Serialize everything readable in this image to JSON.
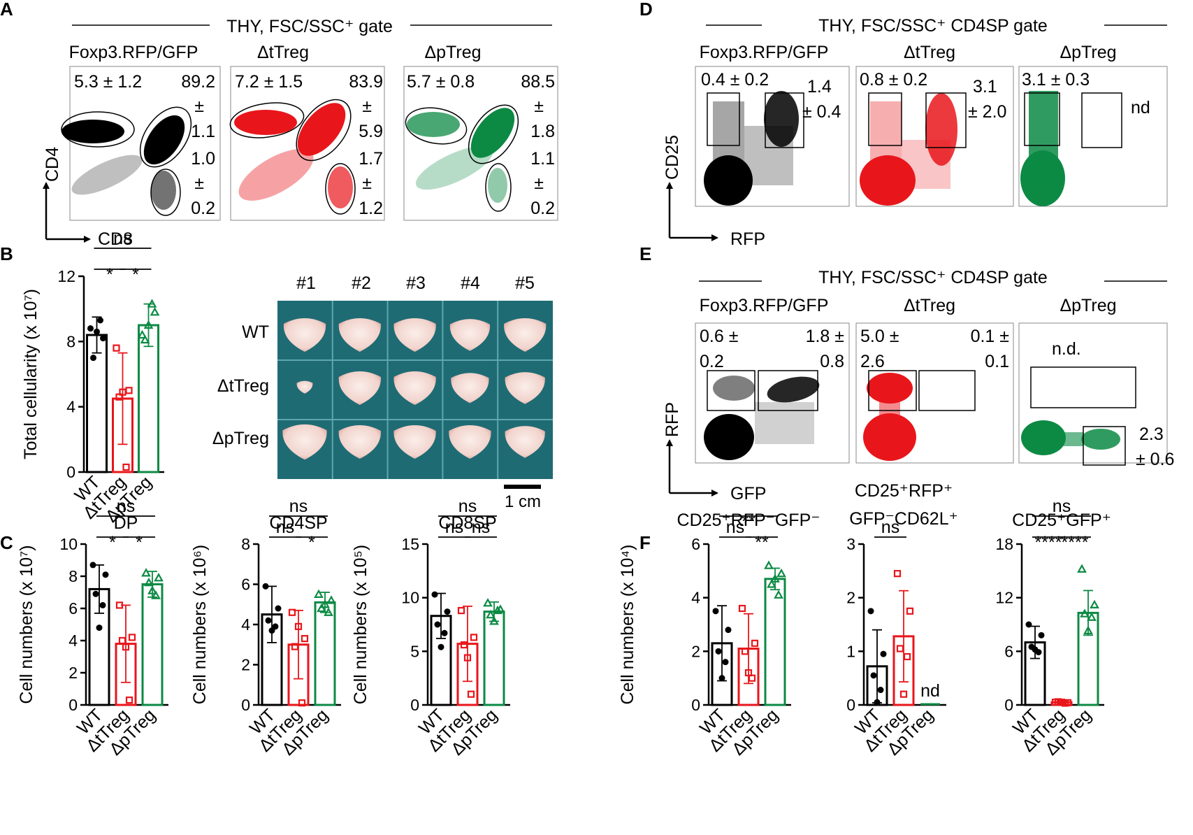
{
  "panels": {
    "A": {
      "letter": "A",
      "title": "THY, FSC/SSC⁺ gate",
      "xaxis": "CD8",
      "yaxis": "CD4",
      "plots": [
        {
          "name": "Foxp3.RFP/GFP",
          "color": "#000000",
          "dp": "5.3 ± 1.2",
          "cd4": [
            "89.2",
            "±",
            "1.1"
          ],
          "cd8": [
            "1.0",
            "±",
            "0.2"
          ]
        },
        {
          "name": "ΔtTreg",
          "color": "#e8161b",
          "dp": "7.2 ± 1.5",
          "cd4": [
            "83.9",
            "±",
            "5.9"
          ],
          "cd8": [
            "1.7",
            "±",
            "1.2"
          ]
        },
        {
          "name": "ΔpTreg",
          "color": "#0c8a44",
          "dp": "5.7 ± 0.8",
          "cd4": [
            "88.5",
            "±",
            "1.8"
          ],
          "cd8": [
            "1.1",
            "±",
            "0.2"
          ]
        }
      ]
    },
    "B": {
      "letter": "B",
      "photo_columns": [
        "#1",
        "#2",
        "#3",
        "#4",
        "#5"
      ],
      "photo_rows": [
        "WT",
        "ΔtTreg",
        "ΔpTreg"
      ],
      "scale_bar": "1 cm"
    },
    "C": {
      "letter": "C"
    },
    "D": {
      "letter": "D",
      "title": "THY, FSC/SSC⁺ CD4SP gate",
      "xaxis": "RFP",
      "yaxis": "CD25",
      "plots": [
        {
          "name": "Foxp3.RFP/GFP",
          "left": "0.4 ± 0.2",
          "right": [
            "1.4",
            "± 0.4"
          ]
        },
        {
          "name": "ΔtTreg",
          "left": "0.8 ± 0.2",
          "right": [
            "3.1",
            "± 2.0"
          ]
        },
        {
          "name": "ΔpTreg",
          "left": "3.1 ± 0.3",
          "right": [
            "nd"
          ]
        }
      ]
    },
    "E": {
      "letter": "E",
      "title": "THY, FSC/SSC⁺ CD4SP gate",
      "xaxis": "GFP",
      "yaxis": "RFP",
      "plots": [
        {
          "name": "Foxp3.RFP/GFP",
          "left": [
            "0.6 ±",
            "0.2"
          ],
          "right": [
            "1.8 ±",
            "0.8"
          ]
        },
        {
          "name": "ΔtTreg",
          "left": [
            "5.0 ±",
            "2.6"
          ],
          "right": [
            "0.1 ±",
            "0.1"
          ]
        },
        {
          "name": "ΔpTreg",
          "top": "n.d.",
          "lower": [
            "2.3",
            "± 0.6"
          ]
        }
      ]
    },
    "F": {
      "letter": "F"
    }
  },
  "chart_data": [
    {
      "id": "B-total",
      "type": "bar",
      "title": "",
      "ylabel": "Total cellularity (x 10⁷)",
      "categories": [
        "WT",
        "ΔtTreg",
        "ΔpTreg"
      ],
      "ylim": [
        0,
        12
      ],
      "yticks": [
        "0",
        "4",
        "8",
        "12"
      ],
      "means": [
        8.4,
        4.5,
        9.0
      ],
      "sd": [
        1.1,
        2.8,
        1.3
      ],
      "points": [
        [
          8.8,
          8.2,
          7.0,
          9.3,
          8.6
        ],
        [
          7.6,
          5.0,
          4.6,
          0.3,
          4.9
        ],
        [
          8.4,
          9.8,
          8.1,
          10.3,
          9.0
        ]
      ],
      "sig": [
        {
          "a": 0,
          "b": 2,
          "label": "ns",
          "level": 2
        },
        {
          "a": 0,
          "b": 1,
          "label": "*",
          "level": 1
        },
        {
          "a": 1,
          "b": 2,
          "label": "*",
          "level": 1
        }
      ]
    },
    {
      "id": "C-DP",
      "type": "bar",
      "title": "DP",
      "ylabel": "Cell numbers (x 10⁷)",
      "categories": [
        "WT",
        "ΔtTreg",
        "ΔpTreg"
      ],
      "ylim": [
        0,
        10
      ],
      "yticks": [
        "0",
        "2",
        "4",
        "6",
        "8",
        "10"
      ],
      "means": [
        7.2,
        3.8,
        7.5
      ],
      "sd": [
        1.5,
        2.4,
        0.8
      ],
      "points": [
        [
          8.7,
          8.1,
          6.9,
          6.2,
          4.8
        ],
        [
          6.2,
          4.2,
          4.0,
          0.3,
          3.6
        ],
        [
          8.2,
          7.9,
          7.6,
          6.8,
          7.1
        ]
      ],
      "sig": [
        {
          "a": 0,
          "b": 2,
          "label": "ns",
          "level": 2
        },
        {
          "a": 0,
          "b": 1,
          "label": "*",
          "level": 1
        },
        {
          "a": 1,
          "b": 2,
          "label": "*",
          "level": 1
        }
      ]
    },
    {
      "id": "C-CD4SP",
      "type": "bar",
      "title": "CD4SP",
      "ylabel": "Cell numbers (x 10⁶)",
      "categories": [
        "WT",
        "ΔtTreg",
        "ΔpTreg"
      ],
      "ylim": [
        0,
        8
      ],
      "yticks": [
        "0",
        "2",
        "4",
        "6",
        "8"
      ],
      "means": [
        4.5,
        3.0,
        5.1
      ],
      "sd": [
        1.4,
        1.7,
        0.5
      ],
      "points": [
        [
          5.9,
          4.8,
          4.2,
          3.9,
          3.7
        ],
        [
          4.6,
          3.3,
          2.9,
          0.1,
          3.9
        ],
        [
          5.5,
          5.2,
          4.8,
          4.6,
          5.0
        ]
      ],
      "sig": [
        {
          "a": 0,
          "b": 2,
          "label": "ns",
          "level": 2
        },
        {
          "a": 0,
          "b": 1,
          "label": "ns",
          "level": 1
        },
        {
          "a": 1,
          "b": 2,
          "label": "*",
          "level": 1
        }
      ]
    },
    {
      "id": "C-CD8SP",
      "type": "bar",
      "title": "CD8SP",
      "ylabel": "Cell numbers (x 10⁵)",
      "categories": [
        "WT",
        "ΔtTreg",
        "ΔpTreg"
      ],
      "ylim": [
        0,
        15
      ],
      "yticks": [
        "0",
        "5",
        "10",
        "15"
      ],
      "means": [
        8.3,
        5.7,
        8.7
      ],
      "sd": [
        2.1,
        3.5,
        0.9
      ],
      "points": [
        [
          10.3,
          8.7,
          7.5,
          6.7,
          5.4
        ],
        [
          8.8,
          6.3,
          5.6,
          1.0,
          4.4
        ],
        [
          9.5,
          8.9,
          8.4,
          8.8,
          7.8
        ]
      ],
      "sig": [
        {
          "a": 0,
          "b": 2,
          "label": "ns",
          "level": 2
        },
        {
          "a": 0,
          "b": 1,
          "label": "ns",
          "level": 1
        },
        {
          "a": 1,
          "b": 2,
          "label": "ns",
          "level": 1
        }
      ]
    },
    {
      "id": "F-1",
      "type": "bar",
      "title": "CD25⁺RFP⁻GFP⁻",
      "title2": "",
      "ylabel": "Cell numbers (x 10⁴)",
      "categories": [
        "WT",
        "ΔtTreg",
        "ΔpTreg"
      ],
      "ylim": [
        0,
        6
      ],
      "yticks": [
        "0",
        "2",
        "4",
        "6"
      ],
      "means": [
        2.3,
        2.1,
        4.7
      ],
      "sd": [
        1.4,
        1.3,
        0.4
      ],
      "points": [
        [
          3.5,
          2.8,
          2.0,
          1.6,
          1.0
        ],
        [
          3.6,
          2.3,
          2.0,
          1.0,
          1.2
        ],
        [
          5.2,
          4.9,
          4.5,
          4.1,
          4.7
        ]
      ],
      "sig": [
        {
          "a": 0,
          "b": 2,
          "label": "**",
          "level": 2
        },
        {
          "a": 0,
          "b": 1,
          "label": "ns",
          "level": 1
        },
        {
          "a": 1,
          "b": 2,
          "label": "**",
          "level": 1
        }
      ]
    },
    {
      "id": "F-2",
      "type": "bar",
      "title": "CD25⁺RFP⁺",
      "title2": "GFP⁻CD62L⁺",
      "ylabel": "",
      "categories": [
        "WT",
        "ΔtTreg",
        "ΔpTreg"
      ],
      "ylim": [
        0,
        3
      ],
      "yticks": [
        "0",
        "1",
        "2",
        "3"
      ],
      "means": [
        0.72,
        1.28,
        0.0
      ],
      "sd": [
        0.68,
        0.85,
        0.0
      ],
      "points": [
        [
          1.75,
          0.95,
          0.55,
          0.28,
          0.05
        ],
        [
          2.45,
          1.75,
          1.05,
          0.9,
          0.2
        ],
        []
      ],
      "nd": "nd",
      "sig": [
        {
          "a": 0,
          "b": 1,
          "label": "ns",
          "level": 1
        }
      ]
    },
    {
      "id": "F-3",
      "type": "bar",
      "title": "CD25⁺GFP⁺",
      "title2": "",
      "ylabel": "",
      "categories": [
        "WT",
        "ΔtTreg",
        "ΔpTreg"
      ],
      "ylim": [
        0,
        18
      ],
      "yticks": [
        "0",
        "6",
        "12",
        "18"
      ],
      "means": [
        7.0,
        0.3,
        10.3
      ],
      "sd": [
        1.8,
        0.15,
        2.5
      ],
      "points": [
        [
          9.0,
          7.8,
          6.5,
          5.9,
          6.2
        ],
        [
          0.3,
          0.25,
          0.35,
          0.2,
          0.3
        ],
        [
          15.2,
          11.2,
          10.2,
          9.8,
          8.3
        ]
      ],
      "sig": [
        {
          "a": 0,
          "b": 2,
          "label": "ns",
          "level": 2
        },
        {
          "a": 0,
          "b": 1,
          "label": "****",
          "level": 1
        },
        {
          "a": 1,
          "b": 2,
          "label": "****",
          "level": 1
        }
      ]
    }
  ],
  "colors": {
    "wt": "#000000",
    "ttreg": "#e8161b",
    "ptreg": "#0c8a44",
    "photo_bg": "#1f6b74"
  }
}
